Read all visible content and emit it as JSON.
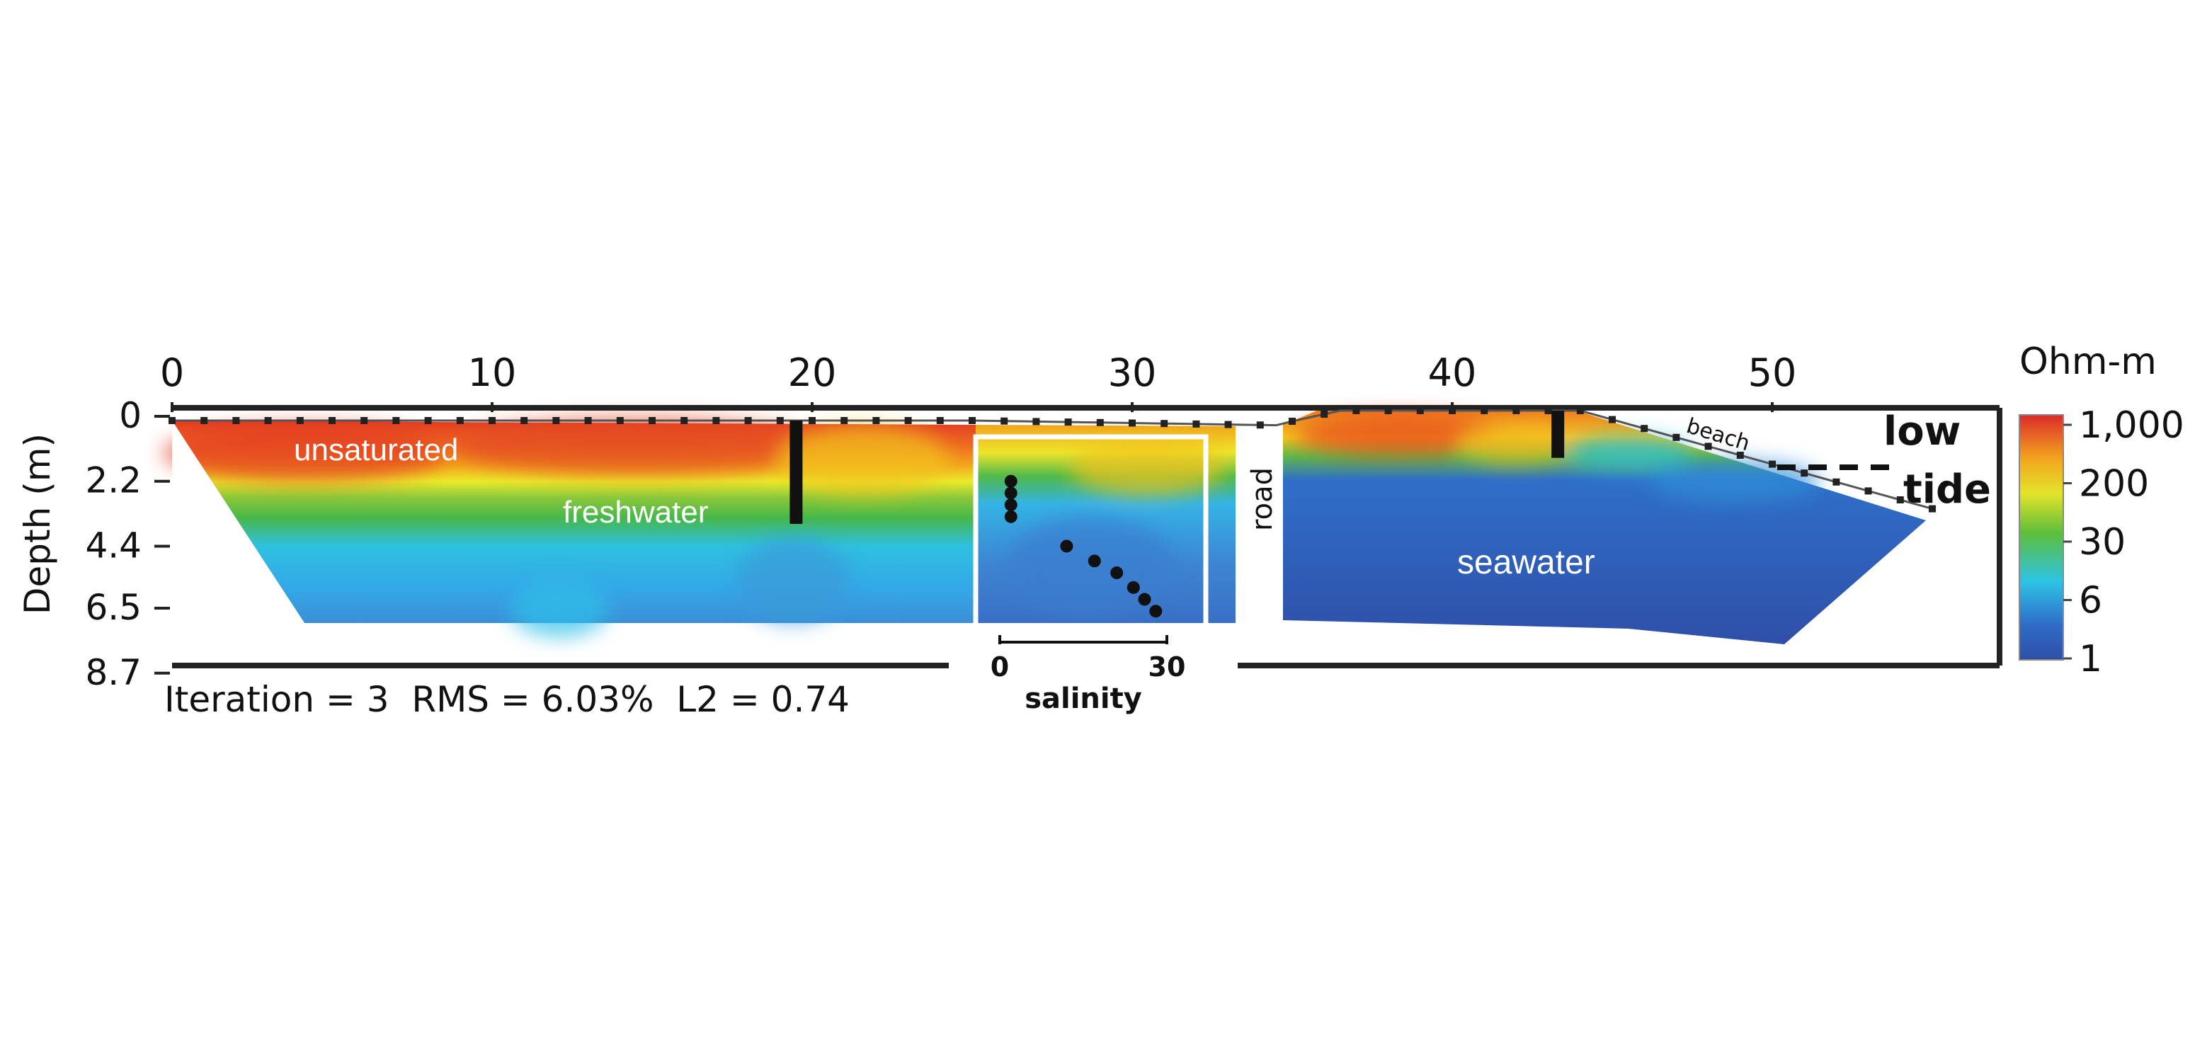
{
  "chart_data": {
    "type": "heatmap",
    "title": "",
    "xlabel": "",
    "ylabel": "Depth (m)",
    "x_ticks": [
      "0",
      "10",
      "20",
      "30",
      "40",
      "50"
    ],
    "x_tick_values": [
      0,
      10,
      20,
      30,
      40,
      50
    ],
    "y_ticks": [
      "0",
      "2.2",
      "4.4",
      "6.5",
      "8.7"
    ],
    "y_tick_values": [
      0,
      2.2,
      4.4,
      6.5,
      8.7
    ],
    "xlim": [
      0,
      57.5
    ],
    "ylim": [
      0,
      8.7
    ],
    "colorbar": {
      "title": "Ohm-m",
      "ticks": [
        "1,000",
        "200",
        "30",
        "6",
        "1"
      ],
      "colors": [
        "#dd2a2a",
        "#f2a61e",
        "#e3e32a",
        "#5fbf3a",
        "#2dc3e6",
        "#2f6bc8",
        "#2f4fa8"
      ]
    },
    "annotations": {
      "unsaturated": "unsaturated",
      "freshwater": "freshwater",
      "seawater": "seawater",
      "road": "road",
      "beach": "beach",
      "low": "low",
      "tide": "tide",
      "salinity": "salinity",
      "salinity_min": "0",
      "salinity_max": "30"
    },
    "stats": "Iteration = 3  RMS = 6.03%  L2 = 0.74",
    "boreholes_x": [
      19.5,
      43.3
    ],
    "electrode_spacing_m": 1.0,
    "salinity_profile": {
      "depth_m": [
        2.2,
        2.6,
        3.0,
        3.4,
        4.4,
        4.9,
        5.3,
        5.8,
        6.2,
        6.6
      ],
      "salinity": [
        2,
        2,
        2,
        2,
        12,
        17,
        21,
        24,
        26,
        28
      ]
    }
  }
}
